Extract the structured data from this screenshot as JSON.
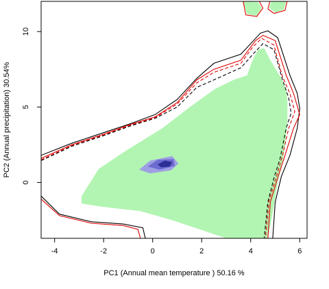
{
  "chart_data": {
    "type": "contour",
    "xlabel": "PC1 (Annual mean temperature ) 50.16 %",
    "ylabel": "PC2 (Annual precipitation) 30.54%",
    "xlim": [
      -4.55,
      6.3
    ],
    "ylim": [
      -3.7,
      12.0
    ],
    "x_ticks": [
      -4,
      -2,
      0,
      2,
      4,
      6
    ],
    "y_ticks": [
      0,
      5,
      10
    ],
    "grid": false,
    "colors": {
      "fill": "#b2f5b2",
      "density_light": "#9f9fe5",
      "density_mid": "#6b6bd0",
      "density_dark": "#2d2d96",
      "contour_black": "#000000",
      "contour_red": "#e00000"
    },
    "green_region": [
      [
        -2.9,
        -0.9
      ],
      [
        -2.2,
        0.9
      ],
      [
        -1.1,
        2.1
      ],
      [
        0.4,
        3.6
      ],
      [
        1.6,
        5.1
      ],
      [
        2.55,
        6.2
      ],
      [
        3.3,
        6.8
      ],
      [
        3.85,
        7.1
      ],
      [
        4.1,
        8.2
      ],
      [
        4.3,
        8.8
      ],
      [
        4.55,
        8.9
      ],
      [
        4.8,
        8.1
      ],
      [
        5.25,
        6.9
      ],
      [
        5.45,
        6.1
      ],
      [
        5.5,
        5.4
      ],
      [
        5.5,
        4.0
      ],
      [
        5.4,
        2.5
      ],
      [
        5.3,
        1.3
      ],
      [
        5.1,
        0.0
      ],
      [
        4.9,
        -2.0
      ],
      [
        4.7,
        -3.7
      ],
      [
        3.0,
        -3.7
      ],
      [
        1.9,
        -3.1
      ],
      [
        0.8,
        -2.5
      ],
      [
        -0.5,
        -1.9
      ],
      [
        -2.1,
        -1.6
      ],
      [
        -2.9,
        -1.4
      ]
    ],
    "green_patch_top": [
      [
        4.75,
        11.6
      ],
      [
        4.85,
        12.0
      ],
      [
        5.45,
        12.0
      ],
      [
        5.35,
        11.45
      ],
      [
        5.0,
        11.25
      ]
    ],
    "green_patch_small": [
      [
        3.7,
        11.9
      ],
      [
        3.85,
        12.0
      ],
      [
        4.3,
        11.95
      ],
      [
        4.45,
        11.55
      ],
      [
        4.25,
        11.05
      ],
      [
        3.85,
        11.15
      ]
    ],
    "density_blob": {
      "outer": [
        [
          -0.55,
          0.85
        ],
        [
          -0.1,
          1.45
        ],
        [
          0.8,
          1.75
        ],
        [
          1.05,
          1.25
        ],
        [
          0.75,
          0.8
        ],
        [
          -0.1,
          0.6
        ]
      ],
      "mid": [
        [
          -0.2,
          1.05
        ],
        [
          0.2,
          1.5
        ],
        [
          0.85,
          1.55
        ],
        [
          0.9,
          1.1
        ],
        [
          0.3,
          0.85
        ]
      ],
      "core": [
        [
          0.2,
          1.2
        ],
        [
          0.5,
          1.45
        ],
        [
          0.8,
          1.35
        ],
        [
          0.7,
          1.05
        ],
        [
          0.35,
          1.0
        ]
      ]
    },
    "contours": [
      {
        "style": "solid",
        "color": "black",
        "points": [
          [
            -4.55,
            1.8
          ],
          [
            -3.3,
            2.6
          ],
          [
            -2.0,
            3.3
          ],
          [
            -0.9,
            3.9
          ],
          [
            0.1,
            4.5
          ],
          [
            1.0,
            5.5
          ],
          [
            1.8,
            6.9
          ],
          [
            2.5,
            7.9
          ],
          [
            3.6,
            8.5
          ],
          [
            4.4,
            9.9
          ],
          [
            4.7,
            10.05
          ],
          [
            5.1,
            9.6
          ],
          [
            5.6,
            7.1
          ],
          [
            5.9,
            5.9
          ],
          [
            6.0,
            4.9
          ],
          [
            5.9,
            3.6
          ],
          [
            5.6,
            1.8
          ],
          [
            5.25,
            0.4
          ],
          [
            5.0,
            -1.3
          ],
          [
            4.9,
            -3.7
          ]
        ]
      },
      {
        "style": "solid",
        "color": "red",
        "points": [
          [
            -4.55,
            1.6
          ],
          [
            -3.3,
            2.5
          ],
          [
            -2.0,
            3.2
          ],
          [
            -0.9,
            3.85
          ],
          [
            0.1,
            4.35
          ],
          [
            1.0,
            5.3
          ],
          [
            1.8,
            6.8
          ],
          [
            2.5,
            7.5
          ],
          [
            3.6,
            8.1
          ],
          [
            4.2,
            9.4
          ],
          [
            4.5,
            9.75
          ],
          [
            5.0,
            9.4
          ],
          [
            5.45,
            7.1
          ],
          [
            5.75,
            5.9
          ],
          [
            6.0,
            4.5
          ],
          [
            5.75,
            3.6
          ],
          [
            5.4,
            1.8
          ],
          [
            5.1,
            0.3
          ],
          [
            4.8,
            -1.3
          ],
          [
            4.7,
            -3.7
          ]
        ]
      },
      {
        "style": "dashed",
        "color": "red",
        "points": [
          [
            -4.55,
            1.5
          ],
          [
            -3.3,
            2.45
          ],
          [
            -2.0,
            3.15
          ],
          [
            -0.9,
            3.8
          ],
          [
            0.1,
            4.3
          ],
          [
            1.0,
            5.2
          ],
          [
            1.8,
            6.6
          ],
          [
            2.5,
            7.3
          ],
          [
            3.6,
            7.9
          ],
          [
            4.1,
            9.0
          ],
          [
            4.45,
            9.55
          ],
          [
            4.95,
            9.1
          ],
          [
            5.3,
            7.0
          ],
          [
            5.6,
            5.9
          ],
          [
            5.8,
            4.7
          ],
          [
            5.55,
            3.6
          ],
          [
            5.3,
            1.8
          ],
          [
            5.05,
            0.4
          ],
          [
            4.75,
            -1.2
          ],
          [
            4.6,
            -3.7
          ]
        ]
      },
      {
        "style": "dashed",
        "color": "black",
        "points": [
          [
            -4.55,
            1.45
          ],
          [
            -3.3,
            2.4
          ],
          [
            -2.0,
            3.1
          ],
          [
            -0.9,
            3.75
          ],
          [
            0.1,
            4.25
          ],
          [
            1.0,
            5.0
          ],
          [
            1.8,
            6.3
          ],
          [
            2.5,
            6.8
          ],
          [
            3.6,
            7.6
          ],
          [
            4.15,
            8.6
          ],
          [
            4.5,
            9.2
          ],
          [
            4.95,
            8.8
          ],
          [
            5.3,
            6.8
          ],
          [
            5.55,
            5.6
          ],
          [
            5.65,
            4.6
          ],
          [
            5.45,
            3.6
          ],
          [
            5.2,
            1.6
          ],
          [
            4.95,
            0.3
          ],
          [
            4.7,
            -1.3
          ],
          [
            4.55,
            -3.7
          ]
        ]
      },
      {
        "style": "solid",
        "color": "black",
        "points": [
          [
            -4.55,
            -0.9
          ],
          [
            -3.8,
            -2.1
          ],
          [
            -2.5,
            -2.6
          ],
          [
            -1.2,
            -2.75
          ],
          [
            -0.4,
            -3.0
          ],
          [
            -0.3,
            -3.7
          ]
        ]
      },
      {
        "style": "solid",
        "color": "red",
        "points": [
          [
            -4.55,
            -1.1
          ],
          [
            -3.8,
            -2.2
          ],
          [
            -2.5,
            -2.7
          ],
          [
            -1.2,
            -2.85
          ],
          [
            -0.6,
            -3.1
          ],
          [
            -0.5,
            -3.7
          ]
        ]
      },
      {
        "style": "solid",
        "color": "red",
        "closed": true,
        "points": [
          [
            3.7,
            11.95
          ],
          [
            3.85,
            12.1
          ],
          [
            4.35,
            12.0
          ],
          [
            4.5,
            11.55
          ],
          [
            4.25,
            11.0
          ],
          [
            3.8,
            11.1
          ]
        ]
      },
      {
        "style": "solid",
        "color": "red",
        "closed": false,
        "points": [
          [
            4.7,
            11.5
          ],
          [
            4.8,
            12.1
          ],
          [
            5.5,
            12.1
          ],
          [
            5.4,
            11.4
          ],
          [
            4.95,
            11.2
          ],
          [
            4.7,
            11.5
          ]
        ]
      }
    ]
  }
}
